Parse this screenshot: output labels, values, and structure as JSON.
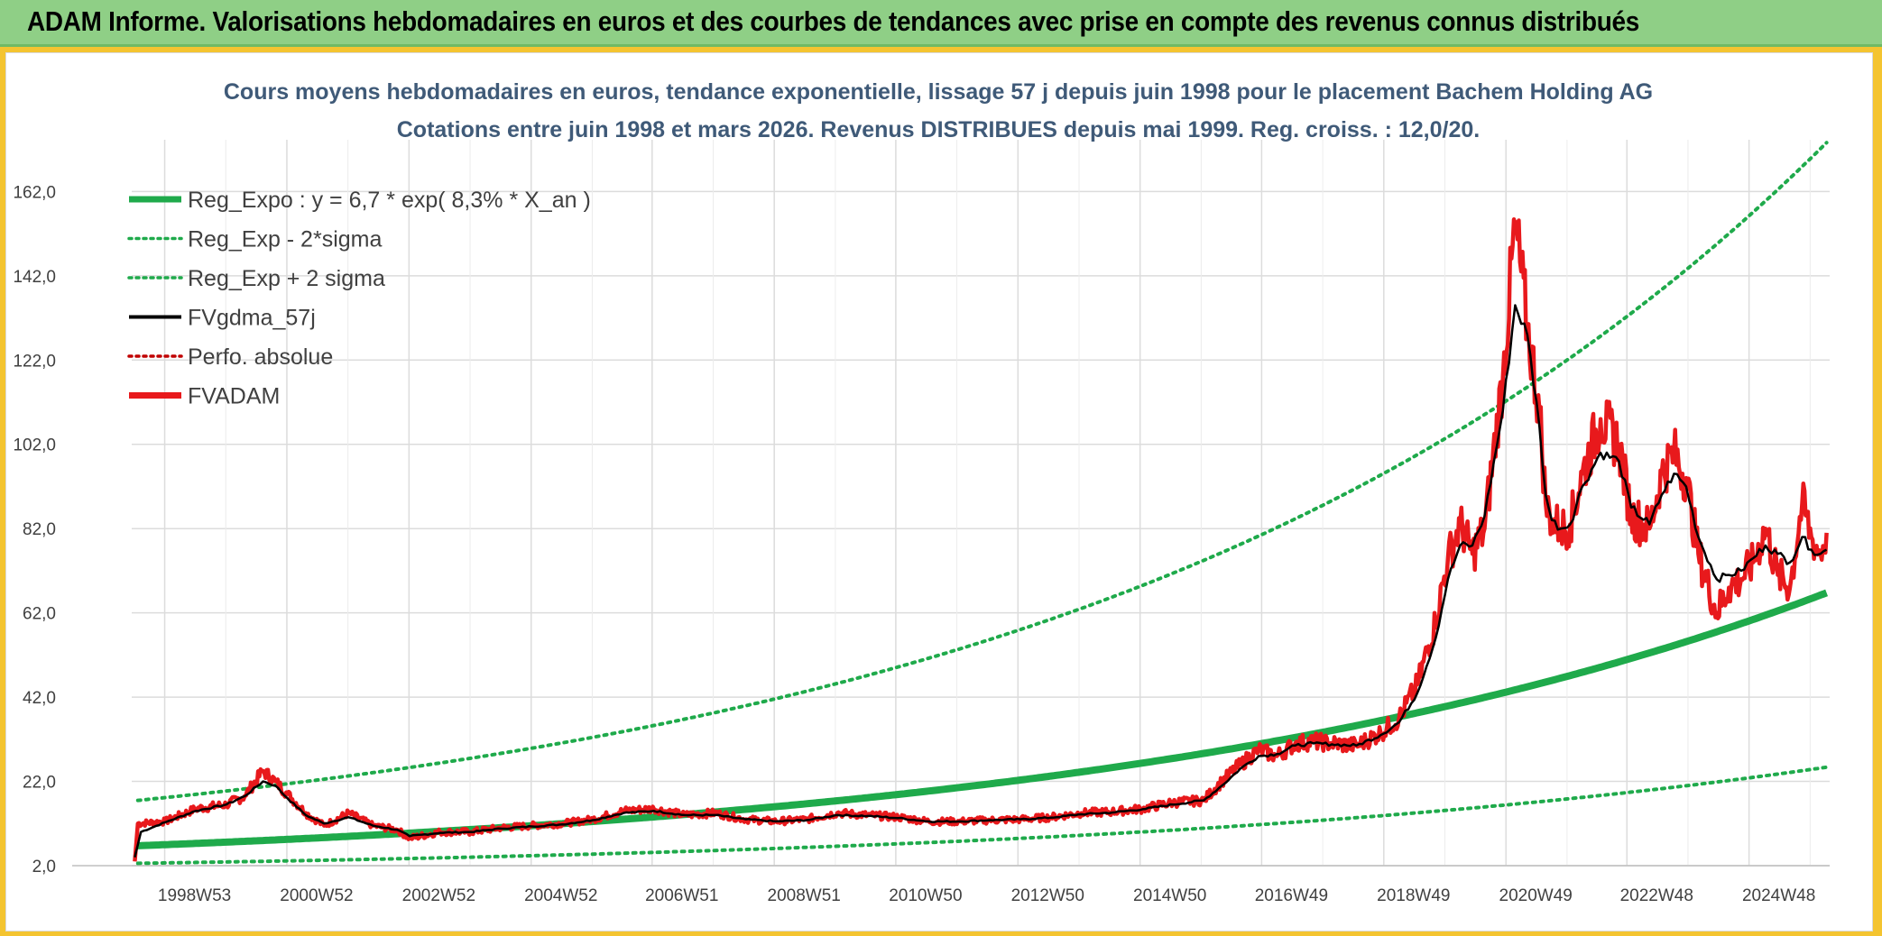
{
  "header": {
    "title": "ADAM Informe. Valorisations hebdomadaires en euros et des courbes de tendances avec prise en compte des revenus connus distribués"
  },
  "colors": {
    "regression": "#1faa4b",
    "fvgdma": "#000000",
    "fvadam": "#e8191c",
    "perfo": "#c00000",
    "grid": "#dcdcdc",
    "title": "#3f5a78"
  },
  "chart_data": {
    "type": "line",
    "title": "Cours moyens hebdomadaires en euros, tendance exponentielle, lissage 57 j depuis juin 1998 pour le placement Bachem Holding AG",
    "subtitle": "Cotations entre juin 1998 et mars 2026. Revenus DISTRIBUES depuis mai 1999. Reg. croiss. : 12,0/20.",
    "xlabel": "",
    "ylabel": "",
    "xlim": [
      1998.45,
      2026.25
    ],
    "ylim": [
      2,
      170
    ],
    "y_ticks": [
      2,
      22,
      42,
      62,
      82,
      102,
      122,
      142,
      162
    ],
    "y_tick_labels": [
      "2,0",
      "22,0",
      "42,0",
      "62,0",
      "82,0",
      "102,0",
      "122,0",
      "142,0",
      "162,0"
    ],
    "x_ticks": [
      1998.99,
      2000.99,
      2002.99,
      2004.99,
      2006.97,
      2008.97,
      2010.96,
      2012.96,
      2014.96,
      2016.95,
      2018.95,
      2020.95,
      2022.93,
      2024.93
    ],
    "x_tick_labels": [
      "1998W53",
      "2000W52",
      "2002W52",
      "2004W52",
      "2006W51",
      "2008W51",
      "2010W50",
      "2012W50",
      "2014W50",
      "2016W49",
      "2018W49",
      "2020W49",
      "2022W48",
      "2024W48"
    ],
    "legend": {
      "position": "top-left",
      "entries": [
        {
          "label": "Reg_Expo : y = 6,7 * exp( 8,3% *  X_an )",
          "style": "solid-thick",
          "color": "#1faa4b"
        },
        {
          "label": "Reg_Exp - 2*sigma",
          "style": "dotted",
          "color": "#1faa4b"
        },
        {
          "label": "Reg_Exp + 2 sigma",
          "style": "dotted",
          "color": "#1faa4b"
        },
        {
          "label": "FVgdma_57j",
          "style": "solid",
          "color": "#000000"
        },
        {
          "label": "Perfo. absolue",
          "style": "dotted",
          "color": "#c00000"
        },
        {
          "label": "FVADAM",
          "style": "solid-thick",
          "color": "#e8191c"
        }
      ]
    },
    "regression": {
      "a": 6.7,
      "rate": 0.083,
      "x0": 1998.5,
      "sigma_factor_low": 0.38,
      "sigma_factor_high": 2.6
    },
    "series": [
      {
        "name": "FVADAM",
        "x": [
          1998.5,
          1998.55,
          1999.0,
          1999.5,
          2000.0,
          2000.3,
          2000.6,
          2000.8,
          2001.0,
          2001.3,
          2001.6,
          2002.0,
          2002.4,
          2002.8,
          2003.0,
          2003.5,
          2004.0,
          2004.5,
          2005.0,
          2005.5,
          2006.0,
          2006.5,
          2007.0,
          2007.5,
          2008.0,
          2008.5,
          2009.0,
          2009.5,
          2010.0,
          2010.5,
          2011.0,
          2011.5,
          2012.0,
          2012.5,
          2013.0,
          2013.5,
          2014.0,
          2014.5,
          2015.0,
          2015.5,
          2016.0,
          2016.3,
          2016.6,
          2016.9,
          2017.2,
          2017.5,
          2017.8,
          2018.1,
          2018.5,
          2018.9,
          2019.2,
          2019.5,
          2019.8,
          2020.0,
          2020.2,
          2020.4,
          2020.6,
          2020.9,
          2021.1,
          2021.3,
          2021.5,
          2021.6,
          2021.7,
          2021.85,
          2022.0,
          2022.2,
          2022.5,
          2022.8,
          2023.0,
          2023.3,
          2023.5,
          2023.7,
          2023.9,
          2024.1,
          2024.4,
          2024.6,
          2024.8,
          2025.0,
          2025.2,
          2025.4,
          2025.6,
          2025.8,
          2025.95,
          2026.1,
          2026.2
        ],
        "values": [
          3.0,
          12.0,
          12.5,
          15.5,
          16.5,
          18.5,
          24.5,
          22.0,
          19.0,
          14.5,
          11.5,
          14.5,
          11.5,
          10.5,
          8.5,
          10.0,
          10.0,
          11.0,
          11.5,
          12.0,
          13.0,
          15.0,
          15.5,
          14.0,
          14.5,
          13.0,
          12.5,
          13.0,
          14.5,
          14.0,
          13.5,
          12.5,
          12.5,
          12.8,
          13.0,
          13.5,
          14.5,
          14.8,
          15.5,
          17.0,
          17.5,
          22.0,
          26.0,
          29.5,
          28.0,
          31.0,
          31.5,
          31.0,
          30.5,
          33.5,
          37.0,
          45.0,
          60.0,
          75.0,
          83.0,
          76.0,
          82.0,
          118.0,
          154.0,
          130.0,
          110.0,
          88.0,
          84.0,
          82.0,
          83.0,
          95.0,
          108.0,
          102.0,
          85.0,
          82.0,
          95.0,
          100.0,
          94.0,
          76.0,
          62.0,
          68.0,
          70.0,
          74.0,
          82.0,
          71.0,
          68.0,
          88.0,
          80.0,
          76.0,
          81.0
        ]
      },
      {
        "name": "FVgdma_57j",
        "x": [
          1998.5,
          1998.6,
          1999.0,
          1999.5,
          2000.0,
          2000.3,
          2000.6,
          2000.8,
          2001.0,
          2001.3,
          2001.6,
          2002.0,
          2002.4,
          2002.8,
          2003.0,
          2003.5,
          2004.0,
          2004.5,
          2005.0,
          2005.5,
          2006.0,
          2006.5,
          2007.0,
          2007.5,
          2008.0,
          2008.5,
          2009.0,
          2009.5,
          2010.0,
          2010.5,
          2011.0,
          2011.5,
          2012.0,
          2012.5,
          2013.0,
          2013.5,
          2014.0,
          2014.5,
          2015.0,
          2015.5,
          2016.0,
          2016.3,
          2016.6,
          2016.9,
          2017.2,
          2017.5,
          2017.8,
          2018.1,
          2018.5,
          2018.9,
          2019.2,
          2019.5,
          2019.8,
          2020.0,
          2020.2,
          2020.4,
          2020.6,
          2020.9,
          2021.1,
          2021.3,
          2021.5,
          2021.6,
          2021.7,
          2021.85,
          2022.0,
          2022.2,
          2022.5,
          2022.8,
          2023.0,
          2023.3,
          2023.5,
          2023.7,
          2023.9,
          2024.1,
          2024.4,
          2024.6,
          2024.8,
          2025.0,
          2025.2,
          2025.4,
          2025.6,
          2025.8,
          2025.95,
          2026.1,
          2026.2
        ],
        "values": [
          4.0,
          10.0,
          12.3,
          15.0,
          16.5,
          18.5,
          22.0,
          21.0,
          18.0,
          14.0,
          12.0,
          13.5,
          11.5,
          10.5,
          9.0,
          9.8,
          10.0,
          10.8,
          11.3,
          11.8,
          12.8,
          14.5,
          15.0,
          14.0,
          14.0,
          13.0,
          12.5,
          12.8,
          14.0,
          13.8,
          13.3,
          12.5,
          12.5,
          12.8,
          13.0,
          13.4,
          14.2,
          14.6,
          15.4,
          16.5,
          17.5,
          21.0,
          25.0,
          28.0,
          28.5,
          30.5,
          31.0,
          30.8,
          30.5,
          33.0,
          36.0,
          43.0,
          56.0,
          70.0,
          78.0,
          78.0,
          85.0,
          110.0,
          135.0,
          128.0,
          106.0,
          90.0,
          84.0,
          82.0,
          83.0,
          92.0,
          100.0,
          98.0,
          87.0,
          83.0,
          90.0,
          95.0,
          92.0,
          80.0,
          70.0,
          71.0,
          72.0,
          75.0,
          78.0,
          76.0,
          74.0,
          80.0,
          77.0,
          76.0,
          77.0
        ]
      }
    ]
  }
}
